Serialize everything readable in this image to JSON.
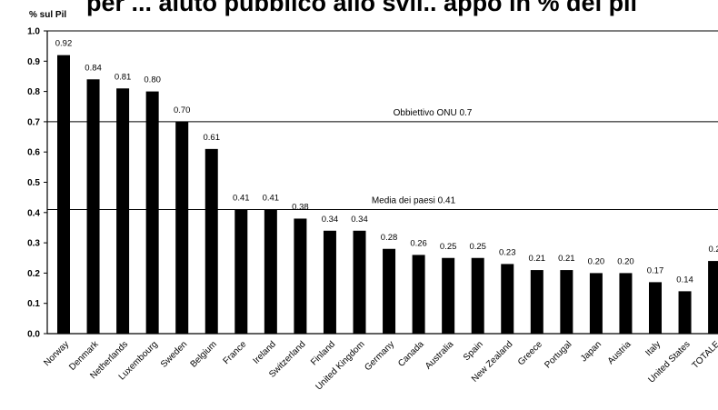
{
  "chart_data": {
    "type": "bar",
    "title": "per ... aiuto pubblico allo svil.. appo in % del pil",
    "ylabel": "% sul Pil",
    "ylim": [
      0,
      1.0
    ],
    "yticks": [
      "0.0",
      "0.1",
      "0.2",
      "0.3",
      "0.4",
      "0.5",
      "0.6",
      "0.7",
      "0.8",
      "0.9",
      "1.0"
    ],
    "grid": false,
    "categories": [
      "Norway",
      "Denmark",
      "Netherlands",
      "Luxembourg",
      "Sweden",
      "Belgium",
      "France",
      "Ireland",
      "Switzerland",
      "Finland",
      "United Kingdom",
      "Germany",
      "Canada",
      "Australia",
      "Spain",
      "New Zealand",
      "Greece",
      "Portugal",
      "Japan",
      "Austria",
      "Italy",
      "United States",
      "TOTALE"
    ],
    "values": [
      0.92,
      0.84,
      0.81,
      0.8,
      0.7,
      0.61,
      0.41,
      0.41,
      0.38,
      0.34,
      0.34,
      0.28,
      0.26,
      0.25,
      0.25,
      0.23,
      0.21,
      0.21,
      0.2,
      0.2,
      0.17,
      0.14,
      0.24
    ],
    "value_labels": [
      "0.92",
      "0.84",
      "0.81",
      "0.80",
      "0.70",
      "0.61",
      "0.41",
      "0.41",
      "0.38",
      "0.34",
      "0.34",
      "0.28",
      "0.26",
      "0.25",
      "0.25",
      "0.23",
      "0.21",
      "0.21",
      "0.20",
      "0.20",
      "0.17",
      "0.14",
      "0.2"
    ],
    "reference_lines": [
      {
        "value": 0.7,
        "label": "Obbiettivo ONU 0.7"
      },
      {
        "value": 0.41,
        "label": "Media dei paesi 0.41"
      }
    ],
    "bar_color": "#000000"
  }
}
